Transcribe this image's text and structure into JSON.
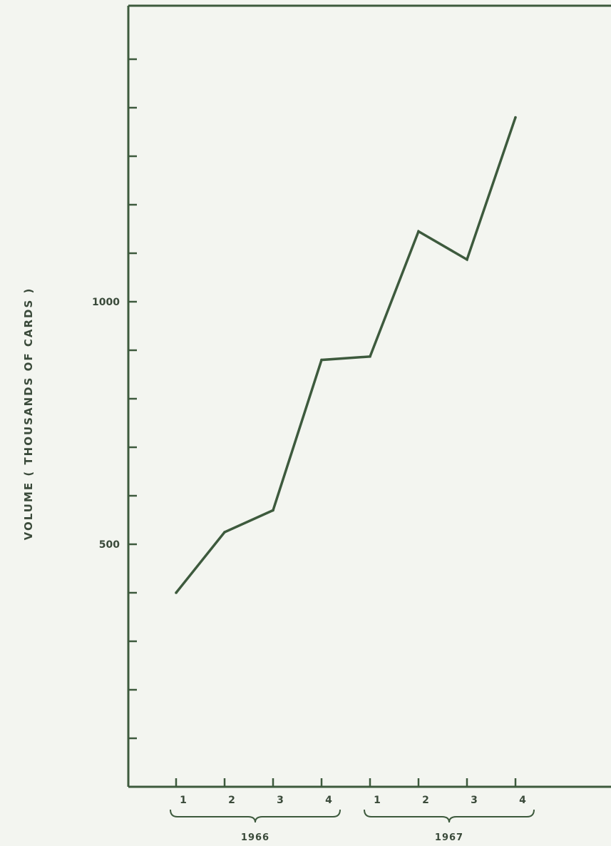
{
  "chart_data": {
    "type": "line",
    "title": "",
    "xlabel": "",
    "ylabel": "VOLUME ( THOUSANDS OF CARDS )",
    "ylim": [
      0,
      1600
    ],
    "y_tick_step": 100,
    "y_tick_labels": [
      {
        "value": 500,
        "label": "500"
      },
      {
        "value": 1000,
        "label": "1000"
      }
    ],
    "x_tick_labels": [
      "1",
      "2",
      "3",
      "4",
      "1",
      "2",
      "3",
      "4"
    ],
    "groups": [
      {
        "label": "1966",
        "quarters": [
          0,
          1,
          2,
          3
        ]
      },
      {
        "label": "1967",
        "quarters": [
          4,
          5,
          6,
          7
        ]
      }
    ],
    "grid": false,
    "series": [
      {
        "values": [
          400,
          525,
          570,
          880,
          887,
          1145,
          1087,
          1380
        ]
      }
    ],
    "line_color": "#3d5a3d"
  }
}
